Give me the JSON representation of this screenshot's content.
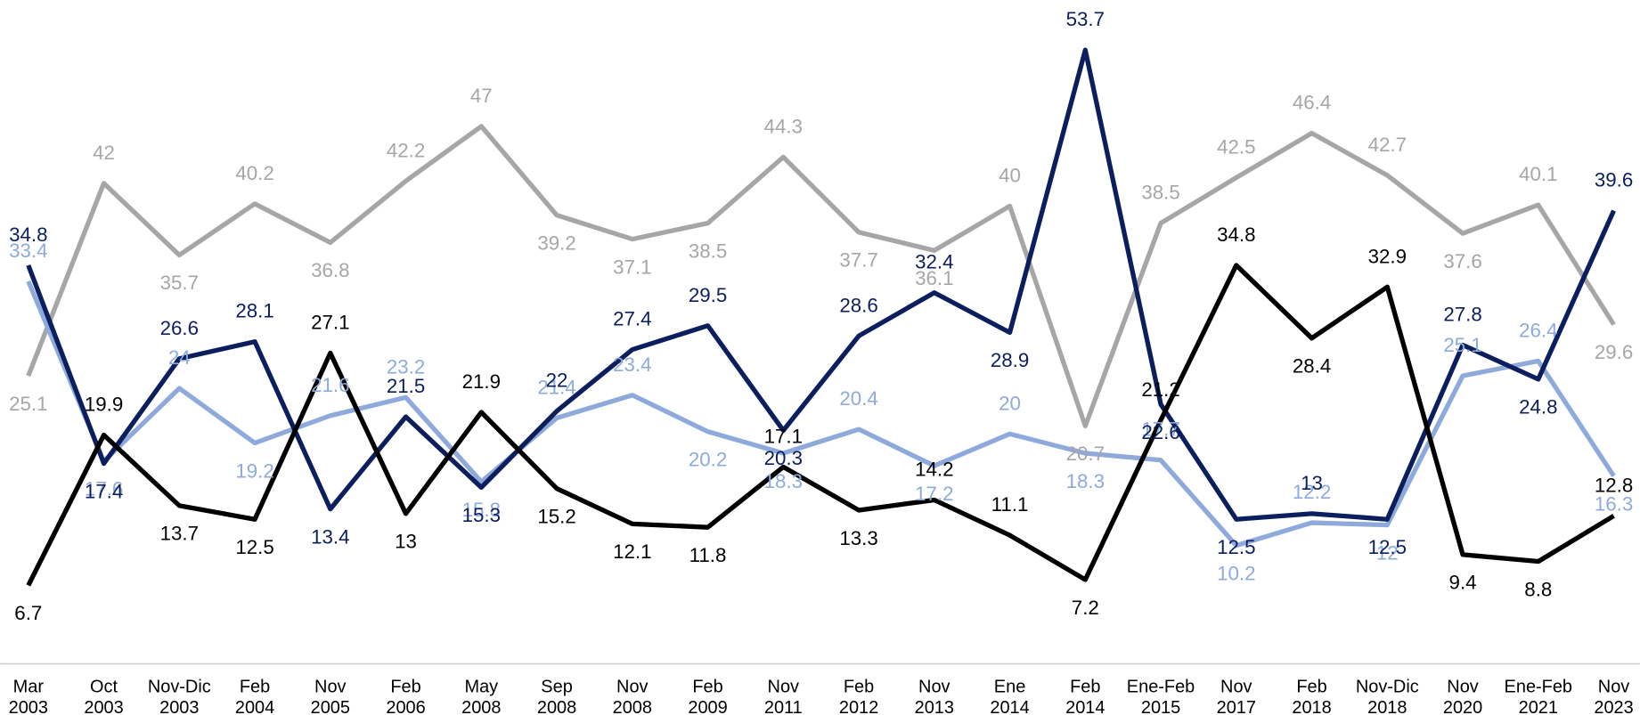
{
  "chart_data": {
    "type": "line",
    "categories": [
      "Mar\n2003",
      "Oct\n2003",
      "Nov-Dic\n2003",
      "Feb\n2004",
      "Nov\n2005",
      "Feb\n2006",
      "May\n2008",
      "Sep\n2008",
      "Nov\n2008",
      "Feb\n2009",
      "Nov\n2011",
      "Feb\n2012",
      "Nov\n2013",
      "Ene\n2014",
      "Feb\n2014",
      "Ene-Feb\n2015",
      "Nov\n2017",
      "Feb\n2018",
      "Nov-Dic\n2018",
      "Nov\n2020",
      "Ene-Feb\n2021",
      "Nov\n2023"
    ],
    "ylim": [
      0,
      58
    ],
    "series": [
      {
        "color": "#a6a6a6",
        "values": [
          25.1,
          42,
          35.7,
          40.2,
          36.8,
          42.2,
          47,
          39.2,
          37.1,
          38.5,
          44.3,
          37.7,
          36.1,
          40,
          20.7,
          38.5,
          42.5,
          46.4,
          42.7,
          37.6,
          40.1,
          29.6
        ]
      },
      {
        "color": "#8eaadb",
        "values": [
          33.4,
          17.6,
          24,
          19.2,
          21.6,
          23.2,
          15.8,
          21.4,
          23.4,
          20.2,
          18.3,
          20.4,
          17.2,
          20,
          18.3,
          17.7,
          10.2,
          12.2,
          12,
          25.1,
          26.4,
          16.3
        ]
      },
      {
        "color": "#0b1f5e",
        "values": [
          34.8,
          17.4,
          26.6,
          28.1,
          13.4,
          21.5,
          15.3,
          22,
          27.4,
          29.5,
          20.3,
          28.6,
          32.4,
          28.9,
          53.7,
          22.6,
          12.5,
          13,
          12.5,
          27.8,
          24.8,
          39.6
        ]
      },
      {
        "color": "#000000",
        "values": [
          6.7,
          19.9,
          13.7,
          12.5,
          27.1,
          13,
          21.9,
          15.2,
          12.1,
          11.8,
          17.1,
          13.3,
          14.2,
          11.1,
          7.2,
          21.2,
          34.8,
          28.4,
          32.9,
          9.4,
          8.8,
          12.8
        ]
      }
    ]
  }
}
